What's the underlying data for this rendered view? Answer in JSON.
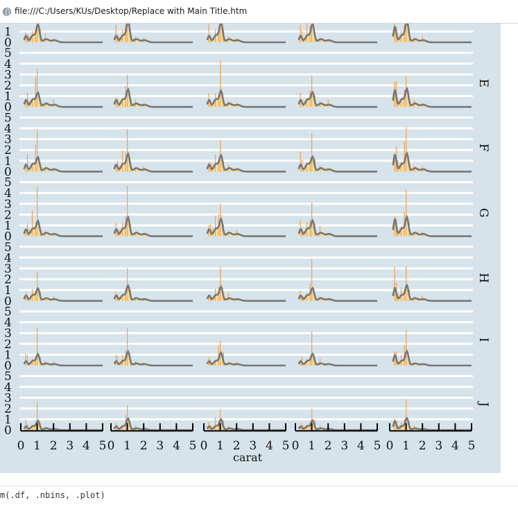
{
  "browser": {
    "url": "file:///C:/Users/KUs/Desktop/Replace with Main Title.htm",
    "icon": "globe-icon"
  },
  "console": {
    "text": "m(.df, .nbins, .plot)"
  },
  "chart_data": {
    "type": "bar",
    "description_layout": "facet grid: rows by color, columns by cut panel",
    "xlabel": "carat",
    "ylabel": "",
    "xlim": [
      0,
      5
    ],
    "ylim": [
      0,
      5
    ],
    "x_ticks": [
      0,
      1,
      2,
      3,
      4,
      5
    ],
    "y_ticks": [
      0,
      1,
      2,
      3,
      4,
      5
    ],
    "columns": 5,
    "rows": [
      {
        "label": "",
        "main_peak": 1.9,
        "second_peak": 1.2
      },
      {
        "label": "E",
        "main_peak": 1.5,
        "second_peak": 1.3
      },
      {
        "label": "F",
        "main_peak": 1.5,
        "second_peak": 1.3
      },
      {
        "label": "G",
        "main_peak": 1.6,
        "second_peak": 1.3
      },
      {
        "label": "H",
        "main_peak": 1.3,
        "second_peak": 1.0
      },
      {
        "label": "I",
        "main_peak": 1.2,
        "second_peak": 0.8
      },
      {
        "label": "J",
        "main_peak": 1.0,
        "second_peak": 0.7
      }
    ],
    "colors": {
      "background": "#d6e3ea",
      "gridline": "#ffffff",
      "bar_light": "#f8dc94",
      "bar_dark": "#f0a45a",
      "density_line": "#767676",
      "axis": "#000000"
    }
  }
}
